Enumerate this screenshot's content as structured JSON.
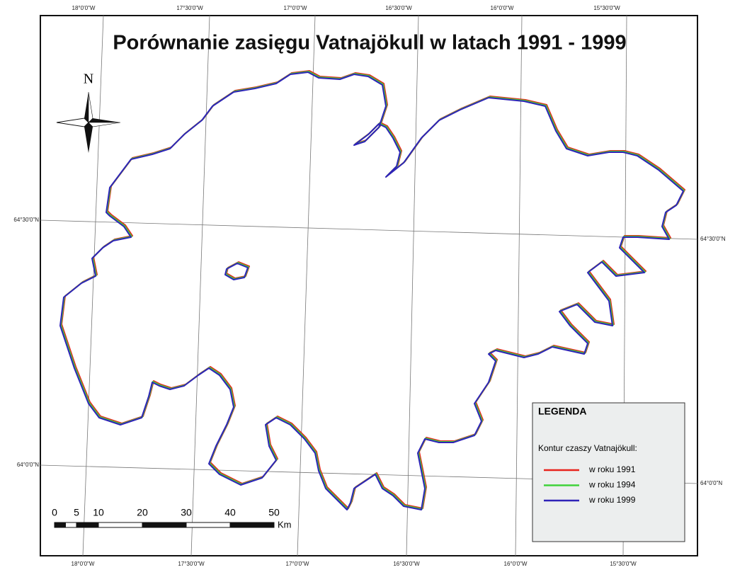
{
  "title": "Porównanie zasięgu Vatnajökull w latach 1991 - 1999",
  "north_label": "N",
  "graticule": {
    "top": [
      "18°0'0\"W",
      "17°30'0\"W",
      "17°0'0\"W",
      "16°30'0\"W",
      "16°0'0\"W",
      "15°30'0\"W"
    ],
    "bottom": [
      "18°0'0\"W",
      "17°30'0\"W",
      "17°0'0\"W",
      "16°30'0\"W",
      "16°0'0\"W",
      "15°30'0\"W"
    ],
    "left": [
      "64°30'0\"N",
      "64°0'0\"N"
    ],
    "right": [
      "64°30'0\"N",
      "64°0'0\"N"
    ]
  },
  "scale_bar": {
    "ticks": [
      0,
      5,
      10,
      20,
      30,
      40,
      50
    ],
    "unit": "Km"
  },
  "legend": {
    "title": "LEGENDA",
    "subtitle": "Kontur czaszy Vatnajökull:",
    "items": [
      {
        "label": "w roku 1991",
        "color": "#e8231c"
      },
      {
        "label": "w roku 1994",
        "color": "#3fd23a"
      },
      {
        "label": "w roku 1999",
        "color": "#2f23b8"
      }
    ]
  }
}
